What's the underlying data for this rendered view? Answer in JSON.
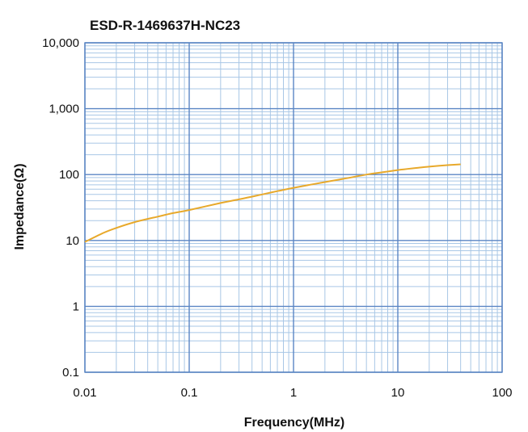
{
  "chart_data": {
    "type": "line",
    "title": "ESD-R-1469637H-NC23",
    "xlabel": "Frequency(MHz)",
    "ylabel": "Impedance(Ω)",
    "x_scale": "log",
    "y_scale": "log",
    "xlim": [
      0.01,
      100
    ],
    "ylim": [
      0.1,
      10000
    ],
    "x_ticks": [
      "0.01",
      "0.1",
      "1",
      "10",
      "100"
    ],
    "x_tick_values": [
      0.01,
      0.1,
      1,
      10,
      100
    ],
    "y_ticks": [
      "0.1",
      "1",
      "10",
      "100",
      "1,000",
      "10,000"
    ],
    "y_tick_values": [
      0.1,
      1,
      10,
      100,
      1000,
      10000
    ],
    "grid": true,
    "legend": "none",
    "series": [
      {
        "color": "#e8a92b",
        "x": [
          0.01,
          0.015,
          0.02,
          0.03,
          0.05,
          0.07,
          0.1,
          0.2,
          0.3,
          0.5,
          0.7,
          1,
          2,
          3,
          5,
          7,
          10,
          15,
          20,
          30,
          40
        ],
        "y": [
          9.5,
          13,
          15.5,
          19,
          23,
          26,
          29,
          37,
          42,
          50,
          56,
          63,
          77,
          86,
          100,
          108,
          117,
          126,
          132,
          139,
          143
        ]
      }
    ]
  },
  "colors": {
    "major_grid": "#5b86c4",
    "minor_grid": "#a9c7e6",
    "curve": "#e8a92b"
  }
}
